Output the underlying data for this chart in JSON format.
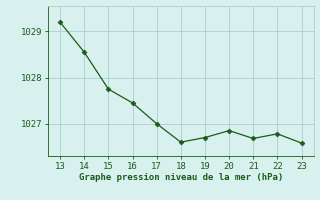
{
  "x": [
    13,
    14,
    15,
    16,
    17,
    18,
    19,
    20,
    21,
    22,
    23
  ],
  "y": [
    1029.2,
    1028.55,
    1027.75,
    1027.45,
    1027.0,
    1026.6,
    1026.7,
    1026.85,
    1026.68,
    1026.78,
    1026.58
  ],
  "line_color": "#1a5c1a",
  "marker": "D",
  "marker_size": 2.5,
  "background_color": "#d8f0ee",
  "grid_color": "#aacfcc",
  "xlabel": "Graphe pression niveau de la mer (hPa)",
  "xlabel_color": "#1a5c1a",
  "xlabel_fontsize": 6.5,
  "tick_color": "#1a5c1a",
  "tick_fontsize": 6.5,
  "ylim": [
    1026.3,
    1029.55
  ],
  "xlim": [
    12.5,
    23.5
  ],
  "yticks": [
    1027,
    1028,
    1029
  ],
  "xticks": [
    13,
    14,
    15,
    16,
    17,
    18,
    19,
    20,
    21,
    22,
    23
  ]
}
